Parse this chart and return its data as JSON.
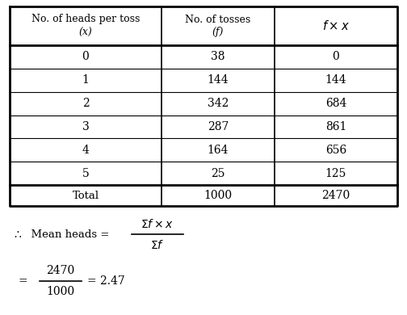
{
  "col1_header_line1": "No. of heads per toss",
  "col1_header_line2": "(x)",
  "col2_header_line1": "No. of tosses",
  "col2_header_line2": "(f)",
  "col3_header": "$f \\times x$",
  "rows": [
    [
      "0",
      "38",
      "0"
    ],
    [
      "1",
      "144",
      "144"
    ],
    [
      "2",
      "342",
      "684"
    ],
    [
      "3",
      "287",
      "861"
    ],
    [
      "4",
      "164",
      "656"
    ],
    [
      "5",
      "25",
      "125"
    ]
  ],
  "total_row": [
    "Total",
    "1000",
    "2470"
  ],
  "fraction_num": "2470",
  "fraction_den": "1000",
  "result": "= 2.47",
  "bg_color": "#ffffff",
  "text_color": "#000000"
}
